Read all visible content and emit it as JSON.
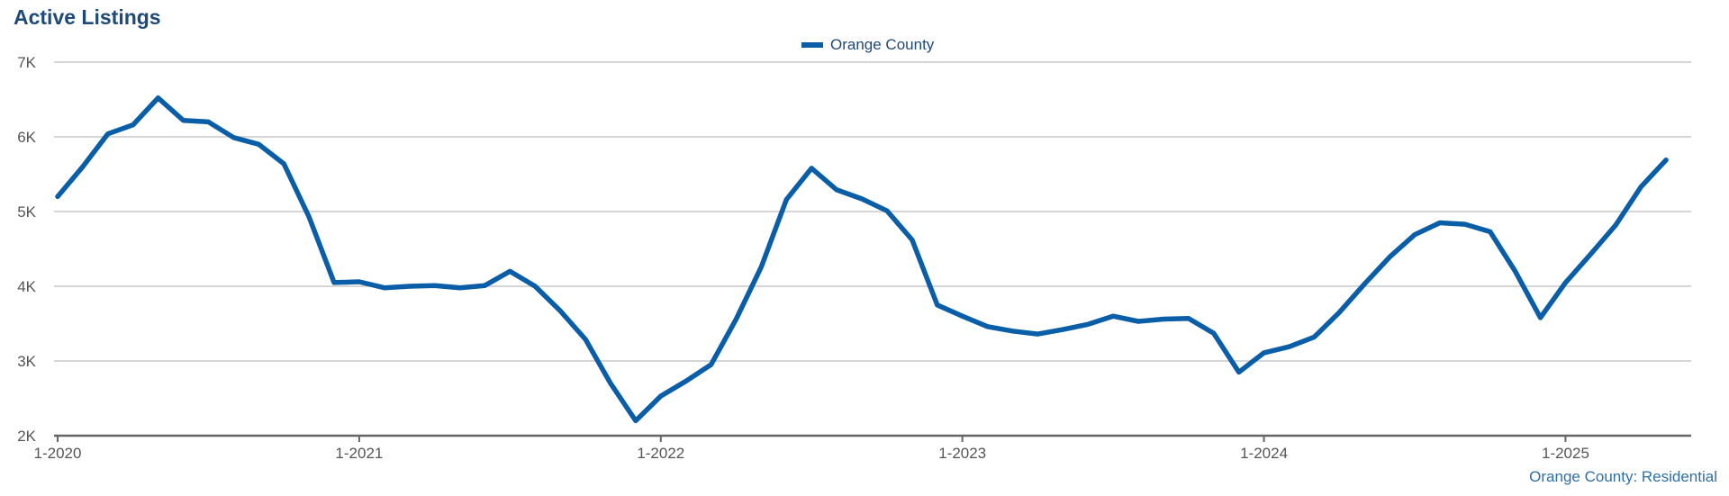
{
  "chart_data": {
    "type": "line",
    "title": "Active Listings",
    "source": "Orange County: Residential",
    "legend_position": "top-center",
    "grid": true,
    "series_color": "#0a5ea8",
    "y_ticks": [
      "2K",
      "3K",
      "4K",
      "5K",
      "6K",
      "7K"
    ],
    "y_tick_values": [
      2000,
      3000,
      4000,
      5000,
      6000,
      7000
    ],
    "ylim": [
      2000,
      7000
    ],
    "x_ticks": [
      "1-2020",
      "1-2021",
      "1-2022",
      "1-2023",
      "1-2024",
      "1-2025"
    ],
    "x_tick_months": [
      "2020-01",
      "2021-01",
      "2022-01",
      "2023-01",
      "2024-01",
      "2025-01"
    ],
    "xlim": [
      "2020-01",
      "2025-06"
    ],
    "series": [
      {
        "name": "Orange County",
        "x": [
          "2020-01",
          "2020-02",
          "2020-03",
          "2020-04",
          "2020-05",
          "2020-06",
          "2020-07",
          "2020-08",
          "2020-09",
          "2020-10",
          "2020-11",
          "2020-12",
          "2021-01",
          "2021-02",
          "2021-03",
          "2021-04",
          "2021-05",
          "2021-06",
          "2021-07",
          "2021-08",
          "2021-09",
          "2021-10",
          "2021-11",
          "2021-12",
          "2022-01",
          "2022-02",
          "2022-03",
          "2022-04",
          "2022-05",
          "2022-06",
          "2022-07",
          "2022-08",
          "2022-09",
          "2022-10",
          "2022-11",
          "2022-12",
          "2023-01",
          "2023-02",
          "2023-03",
          "2023-04",
          "2023-05",
          "2023-06",
          "2023-07",
          "2023-08",
          "2023-09",
          "2023-10",
          "2023-11",
          "2023-12",
          "2024-01",
          "2024-02",
          "2024-03",
          "2024-04",
          "2024-05",
          "2024-06",
          "2024-07",
          "2024-08",
          "2024-09",
          "2024-10",
          "2024-11",
          "2024-12",
          "2025-01",
          "2025-02",
          "2025-03",
          "2025-04",
          "2025-05"
        ],
        "values": [
          5200,
          5600,
          6040,
          6160,
          6520,
          6220,
          6200,
          5990,
          5900,
          5640,
          4930,
          4050,
          4060,
          3980,
          4000,
          4010,
          3980,
          4010,
          4200,
          4000,
          3670,
          3290,
          2700,
          2200,
          2530,
          2730,
          2950,
          3560,
          4260,
          5160,
          5580,
          5290,
          5170,
          5010,
          4620,
          3750,
          3600,
          3460,
          3400,
          3360,
          3420,
          3490,
          3600,
          3530,
          3560,
          3570,
          3370,
          2850,
          3110,
          3190,
          3320,
          3650,
          4030,
          4390,
          4690,
          4850,
          4830,
          4730,
          4200,
          3580,
          4050,
          4430,
          4820,
          5330,
          5690
        ]
      }
    ]
  }
}
